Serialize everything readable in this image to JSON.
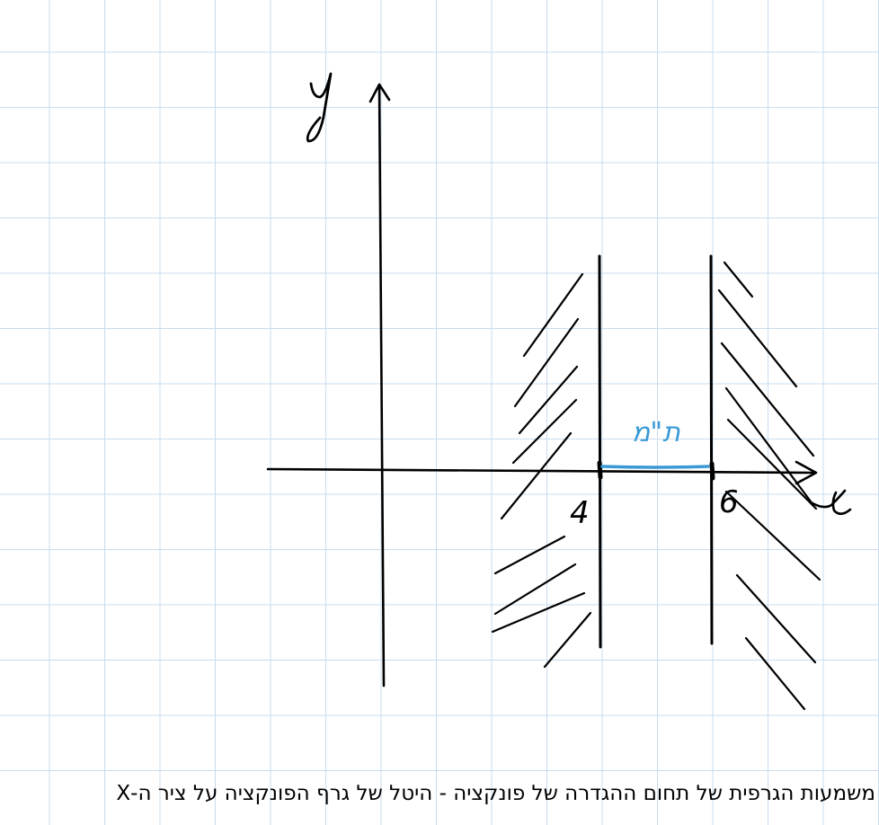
{
  "diagram": {
    "axis_x_label": "x",
    "axis_y_label": "y",
    "tick_left_label": "4",
    "tick_right_label": "6",
    "domain_label": "ת\"מ",
    "caption": "משמעות הגרפית של תחום ההגדרה של פונקציה - היטל של גרף הפונקציה על ציר ה-X"
  },
  "colors": {
    "ink": "#000000",
    "domain_highlight": "#3b9ad6",
    "grid": "#c9dcee"
  }
}
